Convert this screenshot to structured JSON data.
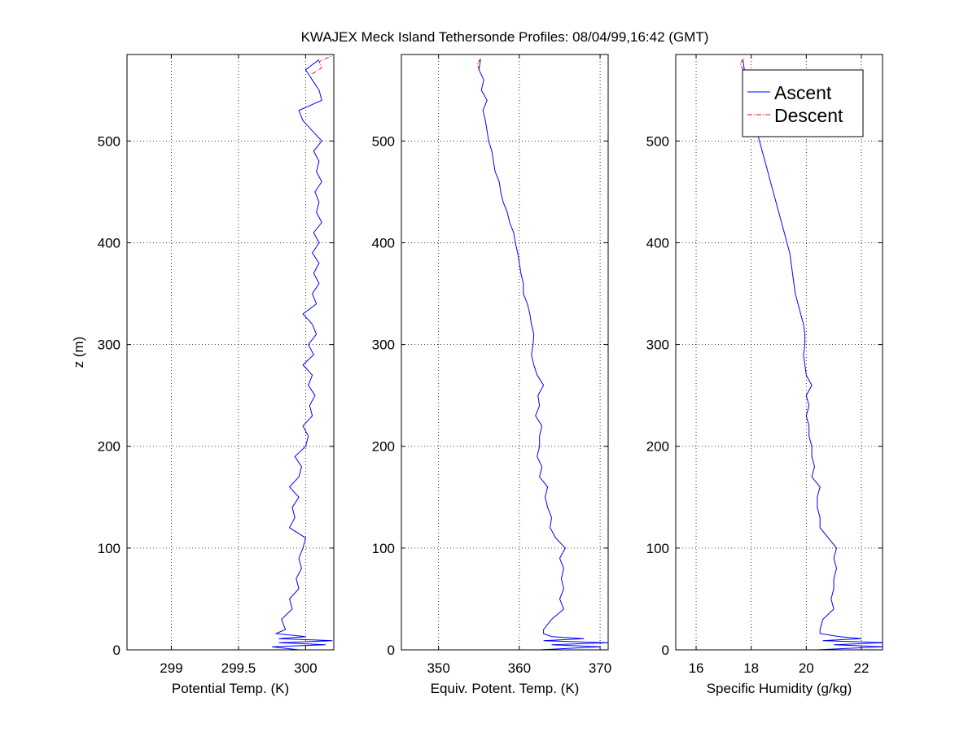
{
  "chart_data": {
    "type": "line",
    "title": "KWAJEX Meck Island Tethersonde Profiles: 08/04/99,16:42 (GMT)",
    "ylabel": "z (m)",
    "ylim": [
      0,
      585
    ],
    "yticks": [
      0,
      100,
      200,
      300,
      400,
      500
    ],
    "grid": true,
    "legend": {
      "placement": "top-right of third panel",
      "entries": [
        {
          "name": "Ascent",
          "color": "#0000ff",
          "style": "solid"
        },
        {
          "name": "Descent",
          "color": "#ff0000",
          "style": "dash-dot"
        }
      ]
    },
    "z": [
      0,
      3,
      5,
      7,
      9,
      11,
      13,
      16,
      20,
      30,
      40,
      50,
      60,
      70,
      80,
      90,
      100,
      110,
      120,
      130,
      140,
      150,
      160,
      170,
      180,
      190,
      200,
      210,
      220,
      230,
      240,
      250,
      260,
      270,
      280,
      290,
      300,
      310,
      320,
      330,
      340,
      350,
      360,
      370,
      380,
      390,
      400,
      410,
      420,
      430,
      440,
      450,
      460,
      470,
      480,
      490,
      500,
      510,
      520,
      530,
      540,
      550,
      560,
      570,
      580
    ],
    "panels": [
      {
        "xlabel": "Potential Temp. (K)",
        "xlim": [
          298.67,
          300.21
        ],
        "xticks": [
          299,
          299.5,
          300
        ],
        "xticklabels": [
          "299",
          "299.5",
          "300"
        ],
        "ascent": [
          299.95,
          299.75,
          300.15,
          299.8,
          300.2,
          299.8,
          300.0,
          299.78,
          299.85,
          299.82,
          299.9,
          299.88,
          299.95,
          299.93,
          299.97,
          299.95,
          299.98,
          300.0,
          299.88,
          299.92,
          299.9,
          299.95,
          299.88,
          299.95,
          299.97,
          299.92,
          300.0,
          300.02,
          299.98,
          300.05,
          300.03,
          300.07,
          300.02,
          300.05,
          299.98,
          300.06,
          300.02,
          300.08,
          300.05,
          299.98,
          300.08,
          300.05,
          300.1,
          300.06,
          300.1,
          300.05,
          300.1,
          300.06,
          300.12,
          300.08,
          300.1,
          300.07,
          300.12,
          300.08,
          300.1,
          300.06,
          300.12,
          300.05,
          299.98,
          299.95,
          300.12,
          300.1,
          300.05,
          300.0,
          300.1
        ],
        "descent": {
          "z": [
            566,
            572,
            578,
            584
          ],
          "values": [
            300.05,
            300.12,
            300.1,
            300.2
          ]
        }
      },
      {
        "xlabel": "Equiv. Potent. Temp. (K)",
        "xlim": [
          345.4,
          371.0
        ],
        "xticks": [
          350,
          360,
          370
        ],
        "xticklabels": [
          "350",
          "360",
          "370"
        ],
        "ascent": [
          362.5,
          370,
          364,
          371,
          363,
          368,
          364,
          363,
          363,
          364,
          365.5,
          365,
          365.5,
          365.2,
          365.5,
          365,
          365.7,
          364.5,
          363.8,
          364,
          363.5,
          363.2,
          363.5,
          362.5,
          362.8,
          362.2,
          362.5,
          362.5,
          362.8,
          362,
          362.5,
          362.3,
          363,
          362.2,
          361.8,
          361.5,
          361.7,
          361.8,
          361.5,
          361.3,
          361,
          360.5,
          360.5,
          360.2,
          360,
          359.8,
          359.5,
          359.3,
          358.8,
          358.5,
          358,
          357.7,
          357.5,
          357,
          356.8,
          356.6,
          356.2,
          356,
          355.8,
          355.5,
          356,
          355.3,
          355.6,
          355,
          355.2
        ],
        "descent": {
          "z": [
            570,
            576,
            582
          ],
          "values": [
            355.0,
            354.8,
            355.3
          ]
        }
      },
      {
        "xlabel": "Specific Humidity (g/kg)",
        "xlim": [
          15.26,
          22.77
        ],
        "xticks": [
          16,
          18,
          20,
          22
        ],
        "xticklabels": [
          "16",
          "18",
          "20",
          "22"
        ],
        "ascent": [
          20.4,
          22.8,
          21,
          22.9,
          20.6,
          22,
          21.2,
          20.5,
          20.5,
          20.6,
          21.0,
          20.9,
          21.0,
          21.0,
          21.1,
          21.0,
          21.1,
          20.8,
          20.5,
          20.5,
          20.4,
          20.4,
          20.5,
          20.2,
          20.3,
          20.2,
          20.2,
          20.1,
          20.1,
          20.0,
          20.1,
          20.0,
          20.2,
          20.0,
          19.95,
          19.9,
          19.95,
          19.95,
          19.9,
          19.8,
          19.7,
          19.6,
          19.55,
          19.5,
          19.45,
          19.4,
          19.3,
          19.2,
          19.1,
          19.0,
          18.9,
          18.8,
          18.7,
          18.6,
          18.5,
          18.4,
          18.3,
          18.2,
          18.1,
          18.0,
          17.9,
          17.85,
          17.8,
          17.75,
          17.7
        ],
        "descent": {
          "z": [
            570,
            576,
            582
          ],
          "values": [
            17.7,
            17.6,
            17.75
          ]
        }
      }
    ]
  }
}
